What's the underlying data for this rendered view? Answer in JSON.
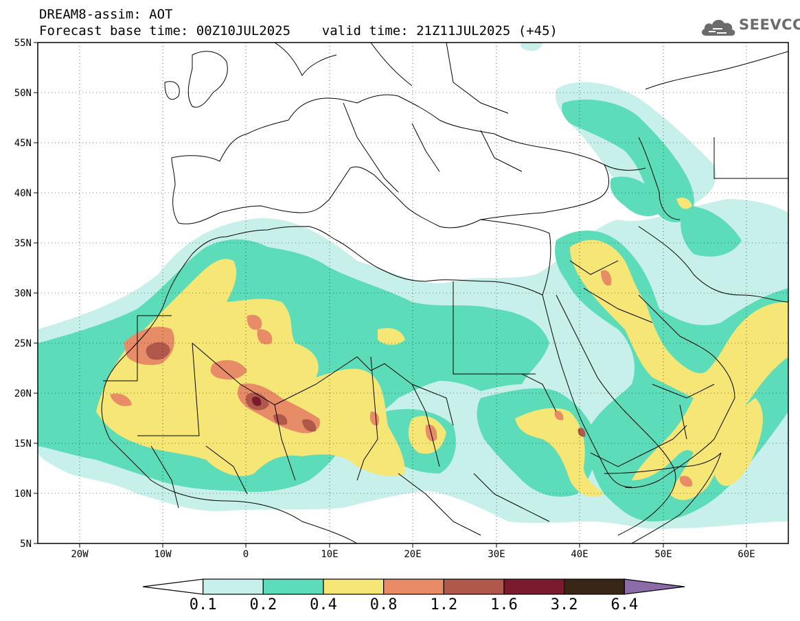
{
  "header": {
    "title_line1": "DREAM8-assim: AOT",
    "title_line2": "Forecast base time: 00Z10JUL2025    valid time: 21Z11JUL2025 (+45)"
  },
  "logo": {
    "text": "SEEVCCC",
    "icon": "cloud-logo-icon",
    "color": "#6b6b6b"
  },
  "map": {
    "variable": "AOT",
    "lon_range": [
      -25,
      65
    ],
    "lat_range": [
      5,
      55
    ],
    "lat_ticks": [
      "55N",
      "50N",
      "45N",
      "40N",
      "35N",
      "30N",
      "25N",
      "20N",
      "15N",
      "10N",
      "5N"
    ],
    "lon_ticks": [
      "20W",
      "10W",
      "0",
      "10E",
      "20E",
      "30E",
      "40E",
      "50E",
      "60E"
    ],
    "gridlines": "dotted"
  },
  "colorbar": {
    "labels": [
      "0.1",
      "0.2",
      "0.4",
      "0.8",
      "1.2",
      "1.6",
      "3.2",
      "6.4"
    ],
    "colors": [
      "#ffffff",
      "#c8f0ea",
      "#5cdcb8",
      "#f5e676",
      "#e88c68",
      "#b0584a",
      "#7b1a2e",
      "#3a2616",
      "#8d6aa8"
    ]
  }
}
